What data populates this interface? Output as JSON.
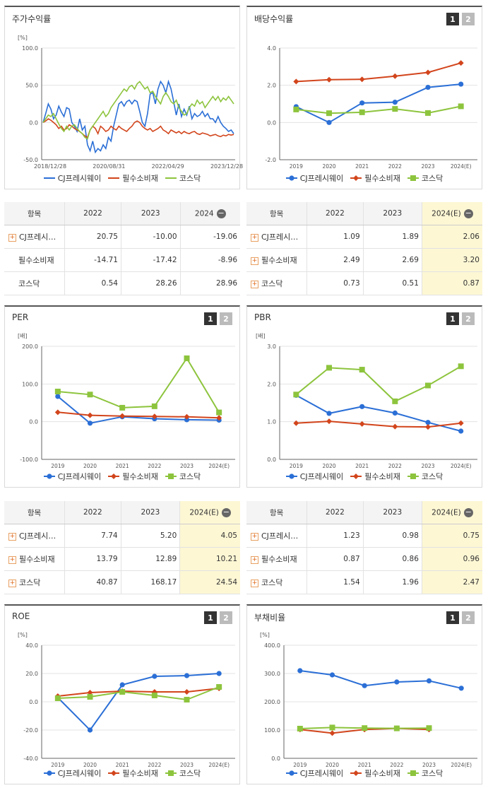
{
  "series_names": [
    "CJ프레시웨이",
    "필수소비재",
    "코스닥"
  ],
  "colors": {
    "s0": "#2b6fd6",
    "s1": "#d2451c",
    "s2": "#8dc43d",
    "grid": "#e3e3e3",
    "axis": "#666666",
    "highlight": "#fdf7d4"
  },
  "tabs": {
    "one": "1",
    "two": "2"
  },
  "table_labels": {
    "item": "항목",
    "s0_short": "CJ프레시…",
    "minus": "−",
    "plus": "+"
  },
  "charts": {
    "stock": {
      "title": "주가수익률",
      "unit": "[%]",
      "chart_data": {
        "type": "line",
        "ylim": [
          -50,
          100
        ],
        "yticks": [
          "100.0",
          "50.0",
          "0.0",
          "-50.0"
        ],
        "xticks": [
          "2018/12/28",
          "2020/08/31",
          "2022/04/29",
          "2023/12/28"
        ],
        "series": [
          {
            "name": "CJ프레시웨이",
            "values": [
              0,
              12,
              25,
              18,
              5,
              10,
              22,
              14,
              8,
              20,
              18,
              0,
              -5,
              -12,
              5,
              -10,
              -5,
              -30,
              -38,
              -25,
              -40,
              -35,
              -38,
              -30,
              -35,
              -20,
              -25,
              -5,
              10,
              25,
              28,
              22,
              28,
              30,
              25,
              30,
              28,
              15,
              0,
              -5,
              12,
              38,
              40,
              25,
              45,
              55,
              50,
              40,
              55,
              45,
              28,
              10,
              25,
              8,
              18,
              10,
              22,
              5,
              12,
              8,
              10,
              15,
              8,
              12,
              5,
              5,
              0,
              8,
              0,
              -5,
              -8,
              -12,
              -10,
              -15
            ]
          },
          {
            "name": "필수소비재",
            "values": [
              0,
              2,
              5,
              3,
              0,
              -3,
              -8,
              -5,
              -10,
              -8,
              -3,
              -5,
              -8,
              -10,
              -12,
              -15,
              -18,
              -20,
              -10,
              -5,
              -8,
              -15,
              -5,
              -8,
              -12,
              -10,
              -5,
              -8,
              -10,
              -5,
              -8,
              -10,
              -12,
              -8,
              -5,
              0,
              2,
              0,
              -5,
              -8,
              -10,
              -8,
              -12,
              -10,
              -8,
              -5,
              -10,
              -12,
              -15,
              -10,
              -12,
              -14,
              -12,
              -15,
              -12,
              -14,
              -15,
              -13,
              -12,
              -15,
              -16,
              -14,
              -15,
              -16,
              -18,
              -17,
              -16,
              -18,
              -19,
              -17,
              -18,
              -16,
              -17,
              -16
            ]
          },
          {
            "name": "코스닥",
            "values": [
              0,
              5,
              10,
              8,
              12,
              5,
              -2,
              -8,
              -12,
              -5,
              -10,
              -5,
              -3,
              -8,
              -12,
              -15,
              -20,
              -22,
              -10,
              -5,
              0,
              5,
              10,
              15,
              8,
              12,
              20,
              25,
              30,
              35,
              40,
              45,
              42,
              48,
              50,
              45,
              52,
              55,
              50,
              45,
              48,
              40,
              42,
              35,
              30,
              25,
              35,
              40,
              35,
              28,
              25,
              30,
              20,
              15,
              10,
              12,
              20,
              25,
              22,
              30,
              25,
              28,
              20,
              25,
              30,
              35,
              30,
              35,
              28,
              33,
              30,
              35,
              30,
              25
            ]
          }
        ]
      }
    },
    "div": {
      "title": "배당수익률",
      "chart_data": {
        "type": "line",
        "ylim": [
          -2,
          4
        ],
        "yticks": [
          "4.0",
          "2.0",
          "0.0",
          "-2.0"
        ],
        "categories": [
          "2019",
          "2020",
          "2021",
          "2022",
          "2023",
          "2024(E)"
        ],
        "series": [
          {
            "name": "CJ프레시웨이",
            "values": [
              0.85,
              0.0,
              1.05,
              1.09,
              1.89,
              2.06
            ]
          },
          {
            "name": "필수소비재",
            "values": [
              2.2,
              2.3,
              2.32,
              2.49,
              2.69,
              3.2
            ]
          },
          {
            "name": "코스닥",
            "values": [
              0.7,
              0.5,
              0.55,
              0.73,
              0.51,
              0.87
            ]
          }
        ]
      }
    },
    "per": {
      "title": "PER",
      "unit": "[배]",
      "chart_data": {
        "type": "line",
        "ylim": [
          -100,
          200
        ],
        "yticks": [
          "200.0",
          "100.0",
          "0.0",
          "-100.0"
        ],
        "categories": [
          "2019",
          "2020",
          "2021",
          "2022",
          "2023",
          "2024(E)"
        ],
        "series": [
          {
            "name": "CJ프레시웨이",
            "values": [
              67,
              -4,
              13,
              7.74,
              5.2,
              4.05
            ]
          },
          {
            "name": "필수소비재",
            "values": [
              25,
              17,
              15,
              13.79,
              12.89,
              10.21
            ]
          },
          {
            "name": "코스닥",
            "values": [
              80,
              72,
              37,
              40.87,
              168.17,
              24.54
            ]
          }
        ]
      }
    },
    "pbr": {
      "title": "PBR",
      "unit": "[배]",
      "chart_data": {
        "type": "line",
        "ylim": [
          0,
          3
        ],
        "yticks": [
          "3.0",
          "2.0",
          "1.0",
          "0.0"
        ],
        "categories": [
          "2019",
          "2020",
          "2021",
          "2022",
          "2023",
          "2024(E)"
        ],
        "series": [
          {
            "name": "CJ프레시웨이",
            "values": [
              1.7,
              1.22,
              1.4,
              1.23,
              0.98,
              0.75
            ]
          },
          {
            "name": "필수소비재",
            "values": [
              0.96,
              1.01,
              0.94,
              0.87,
              0.86,
              0.96
            ]
          },
          {
            "name": "코스닥",
            "values": [
              1.72,
              2.43,
              2.38,
              1.54,
              1.96,
              2.47
            ]
          }
        ]
      }
    },
    "roe": {
      "title": "ROE",
      "unit": "[%]",
      "chart_data": {
        "type": "line",
        "ylim": [
          -40,
          40
        ],
        "yticks": [
          "40.0",
          "20.0",
          "0.0",
          "-20.0",
          "-40.0"
        ],
        "categories": [
          "2019",
          "2020",
          "2021",
          "2022",
          "2023",
          "2024(E)"
        ],
        "series": [
          {
            "name": "CJ프레시웨이",
            "values": [
              3,
              -20,
              12,
              18,
              18.5,
              20
            ]
          },
          {
            "name": "필수소비재",
            "values": [
              4,
              6.5,
              7.5,
              7,
              7,
              9.5
            ]
          },
          {
            "name": "코스닥",
            "values": [
              2.5,
              3.5,
              7,
              4.5,
              1.5,
              10.5
            ]
          }
        ]
      }
    },
    "debt": {
      "title": "부채비율",
      "unit": "[%]",
      "chart_data": {
        "type": "line",
        "ylim": [
          0,
          400
        ],
        "yticks": [
          "400.0",
          "300.0",
          "200.0",
          "100.0",
          "0.0"
        ],
        "categories": [
          "2019",
          "2020",
          "2021",
          "2022",
          "2023",
          "2024(E)"
        ],
        "series": [
          {
            "name": "CJ프레시웨이",
            "values": [
              310,
              295,
              257,
              270,
              274,
              248
            ]
          },
          {
            "name": "필수소비재",
            "values": [
              102,
              89,
              102,
              106,
              102,
              null
            ]
          },
          {
            "name": "코스닥",
            "values": [
              105,
              109,
              107,
              106,
              107,
              null
            ]
          }
        ]
      }
    }
  },
  "tables": {
    "stock": {
      "headers": [
        "항목",
        "2022",
        "2023",
        "2024"
      ],
      "rows": [
        [
          "CJ프레시…",
          "20.75",
          "-10.00",
          "-19.06"
        ],
        [
          "필수소비재",
          "-14.71",
          "-17.42",
          "-8.96"
        ],
        [
          "코스닥",
          "0.54",
          "28.26",
          "28.96"
        ]
      ]
    },
    "div": {
      "headers": [
        "항목",
        "2022",
        "2023",
        "2024(E)"
      ],
      "rows": [
        [
          "CJ프레시…",
          "1.09",
          "1.89",
          "2.06"
        ],
        [
          "필수소비재",
          "2.49",
          "2.69",
          "3.20"
        ],
        [
          "코스닥",
          "0.73",
          "0.51",
          "0.87"
        ]
      ]
    },
    "per": {
      "headers": [
        "항목",
        "2022",
        "2023",
        "2024(E)"
      ],
      "rows": [
        [
          "CJ프레시…",
          "7.74",
          "5.20",
          "4.05"
        ],
        [
          "필수소비재",
          "13.79",
          "12.89",
          "10.21"
        ],
        [
          "코스닥",
          "40.87",
          "168.17",
          "24.54"
        ]
      ]
    },
    "pbr": {
      "headers": [
        "항목",
        "2022",
        "2023",
        "2024(E)"
      ],
      "rows": [
        [
          "CJ프레시…",
          "1.23",
          "0.98",
          "0.75"
        ],
        [
          "필수소비재",
          "0.87",
          "0.86",
          "0.96"
        ],
        [
          "코스닥",
          "1.54",
          "1.96",
          "2.47"
        ]
      ]
    }
  }
}
